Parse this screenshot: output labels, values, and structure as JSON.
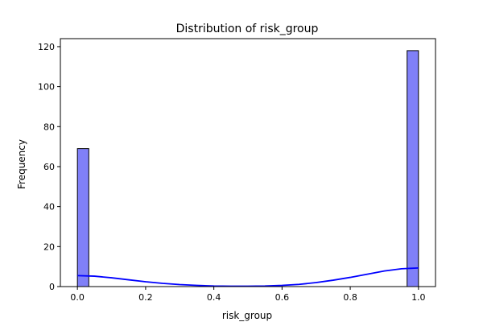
{
  "chart_data": {
    "type": "bar",
    "title": "Distribution of risk_group",
    "xlabel": "risk_group",
    "ylabel": "Frequency",
    "xlim": [
      -0.05,
      1.05
    ],
    "ylim": [
      0,
      124
    ],
    "x_ticks": [
      0.0,
      0.2,
      0.4,
      0.6,
      0.8,
      1.0
    ],
    "x_tick_labels": [
      "0.0",
      "0.2",
      "0.4",
      "0.6",
      "0.8",
      "1.0"
    ],
    "y_ticks": [
      0,
      20,
      40,
      60,
      80,
      100,
      120
    ],
    "y_tick_labels": [
      "0",
      "20",
      "40",
      "60",
      "80",
      "100",
      "120"
    ],
    "bins": [
      {
        "x0": 0.0,
        "x1": 0.0333,
        "count": 69
      },
      {
        "x0": 0.9667,
        "x1": 1.0,
        "count": 118
      }
    ],
    "kde": {
      "x": [
        0.0,
        0.05,
        0.1,
        0.15,
        0.2,
        0.25,
        0.3,
        0.35,
        0.4,
        0.45,
        0.5,
        0.55,
        0.6,
        0.65,
        0.7,
        0.75,
        0.8,
        0.85,
        0.9,
        0.95,
        1.0
      ],
      "y": [
        5.5,
        5.2,
        4.4,
        3.4,
        2.4,
        1.6,
        1.0,
        0.6,
        0.3,
        0.2,
        0.2,
        0.3,
        0.6,
        1.1,
        2.0,
        3.2,
        4.6,
        6.2,
        7.8,
        8.9,
        9.3
      ]
    },
    "bar_color": "#8080f8",
    "bar_edge_color": "#000000",
    "kde_color": "#0000ff",
    "grid": false,
    "legend": "none"
  }
}
